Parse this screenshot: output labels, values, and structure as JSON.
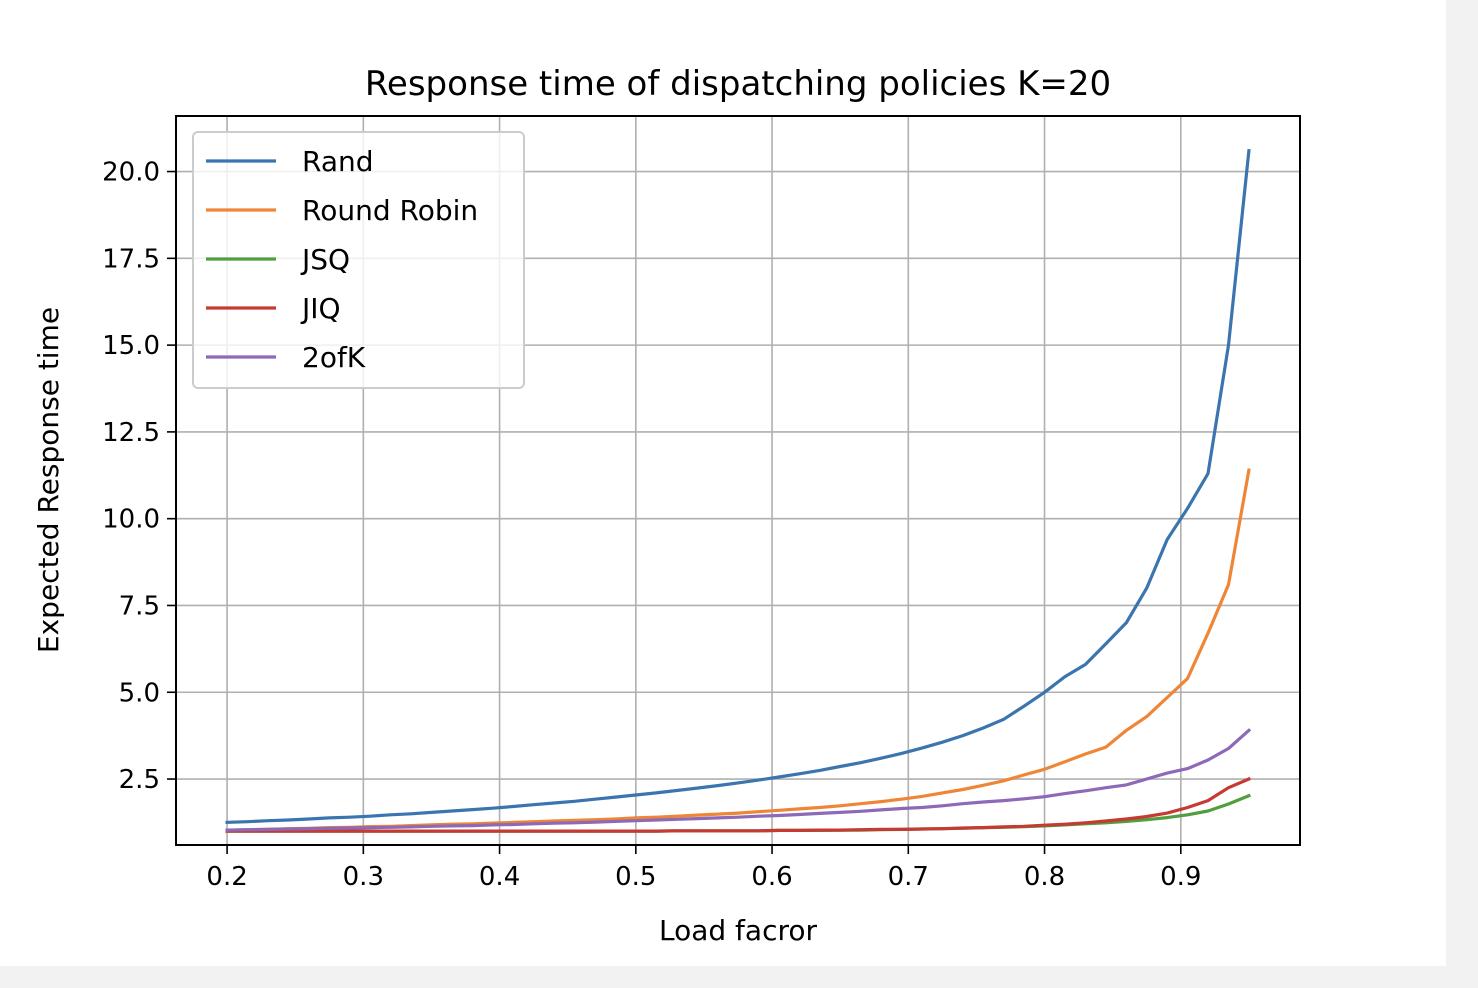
{
  "chart_data": {
    "type": "line",
    "title": "Response time of dispatching policies K=20",
    "xlabel": "Load facror",
    "ylabel": "Expected Response time",
    "xlim": [
      0.1625,
      0.9875
    ],
    "ylim": [
      0.6,
      21.6
    ],
    "xticks": [
      0.2,
      0.3,
      0.4,
      0.5,
      0.6,
      0.7,
      0.8,
      0.9
    ],
    "xtick_labels": [
      "0.2",
      "0.3",
      "0.4",
      "0.5",
      "0.6",
      "0.7",
      "0.8",
      "0.9"
    ],
    "yticks": [
      2.5,
      5.0,
      7.5,
      10.0,
      12.5,
      15.0,
      17.5,
      20.0
    ],
    "ytick_labels": [
      "2.5",
      "5.0",
      "7.5",
      "10.0",
      "12.5",
      "15.0",
      "17.5",
      "20.0"
    ],
    "grid": true,
    "legend_position": "top-left",
    "x": [
      0.2,
      0.215,
      0.23,
      0.245,
      0.26,
      0.275,
      0.29,
      0.305,
      0.32,
      0.335,
      0.35,
      0.365,
      0.38,
      0.395,
      0.41,
      0.425,
      0.44,
      0.455,
      0.47,
      0.485,
      0.5,
      0.515,
      0.53,
      0.545,
      0.56,
      0.575,
      0.59,
      0.605,
      0.62,
      0.635,
      0.65,
      0.665,
      0.68,
      0.695,
      0.71,
      0.725,
      0.74,
      0.755,
      0.77,
      0.785,
      0.8,
      0.815,
      0.83,
      0.845,
      0.86,
      0.875,
      0.89,
      0.905,
      0.92,
      0.935,
      0.95
    ],
    "series": [
      {
        "name": "Rand",
        "color": "#3b75af",
        "values": [
          1.25,
          1.27,
          1.3,
          1.32,
          1.35,
          1.38,
          1.4,
          1.43,
          1.47,
          1.5,
          1.54,
          1.58,
          1.62,
          1.66,
          1.71,
          1.76,
          1.81,
          1.86,
          1.92,
          1.98,
          2.04,
          2.1,
          2.17,
          2.24,
          2.31,
          2.39,
          2.47,
          2.56,
          2.65,
          2.75,
          2.86,
          2.97,
          3.1,
          3.24,
          3.39,
          3.56,
          3.75,
          3.97,
          4.22,
          4.6,
          5.0,
          5.45,
          5.8,
          6.4,
          7.0,
          8.0,
          9.4,
          10.3,
          11.3,
          15.0,
          20.6
        ]
      },
      {
        "name": "Round Robin",
        "color": "#ef8636",
        "values": [
          1.02,
          1.04,
          1.05,
          1.07,
          1.08,
          1.1,
          1.11,
          1.13,
          1.14,
          1.16,
          1.18,
          1.2,
          1.21,
          1.23,
          1.25,
          1.27,
          1.29,
          1.31,
          1.33,
          1.35,
          1.38,
          1.4,
          1.43,
          1.46,
          1.49,
          1.52,
          1.56,
          1.6,
          1.64,
          1.68,
          1.73,
          1.79,
          1.85,
          1.92,
          2.0,
          2.1,
          2.2,
          2.32,
          2.45,
          2.62,
          2.78,
          3.0,
          3.22,
          3.42,
          3.9,
          4.3,
          4.85,
          5.4,
          6.7,
          8.1,
          11.4
        ]
      },
      {
        "name": "JSQ",
        "color": "#519e3e",
        "values": [
          1.0,
          1.0,
          1.0,
          1.0,
          1.0,
          1.0,
          1.0,
          1.0,
          1.0,
          1.0,
          1.0,
          1.0,
          1.0,
          1.0,
          1.0,
          1.0,
          1.0,
          1.0,
          1.0,
          1.0,
          1.0,
          1.0,
          1.01,
          1.01,
          1.01,
          1.01,
          1.01,
          1.02,
          1.02,
          1.02,
          1.03,
          1.03,
          1.04,
          1.05,
          1.06,
          1.07,
          1.08,
          1.1,
          1.11,
          1.13,
          1.15,
          1.18,
          1.21,
          1.24,
          1.28,
          1.33,
          1.39,
          1.47,
          1.58,
          1.78,
          2.02
        ]
      },
      {
        "name": "JIQ",
        "color": "#c53a32",
        "values": [
          1.0,
          1.0,
          1.0,
          1.0,
          1.0,
          1.0,
          1.0,
          1.0,
          1.0,
          1.0,
          1.0,
          1.0,
          1.0,
          1.0,
          1.0,
          1.0,
          1.0,
          1.0,
          1.0,
          1.0,
          1.0,
          1.0,
          1.01,
          1.01,
          1.01,
          1.01,
          1.01,
          1.02,
          1.02,
          1.03,
          1.03,
          1.04,
          1.05,
          1.05,
          1.06,
          1.07,
          1.09,
          1.1,
          1.12,
          1.14,
          1.17,
          1.2,
          1.24,
          1.29,
          1.35,
          1.42,
          1.52,
          1.68,
          1.88,
          2.25,
          2.5
        ]
      },
      {
        "name": "2ofK",
        "color": "#8d69b8",
        "values": [
          1.03,
          1.04,
          1.05,
          1.06,
          1.07,
          1.08,
          1.09,
          1.1,
          1.11,
          1.12,
          1.14,
          1.15,
          1.16,
          1.18,
          1.19,
          1.21,
          1.23,
          1.24,
          1.26,
          1.28,
          1.3,
          1.32,
          1.34,
          1.36,
          1.38,
          1.4,
          1.43,
          1.45,
          1.48,
          1.51,
          1.54,
          1.57,
          1.61,
          1.65,
          1.68,
          1.73,
          1.79,
          1.84,
          1.88,
          1.93,
          1.99,
          2.08,
          2.16,
          2.25,
          2.33,
          2.5,
          2.67,
          2.8,
          3.05,
          3.38,
          3.9
        ]
      }
    ]
  }
}
